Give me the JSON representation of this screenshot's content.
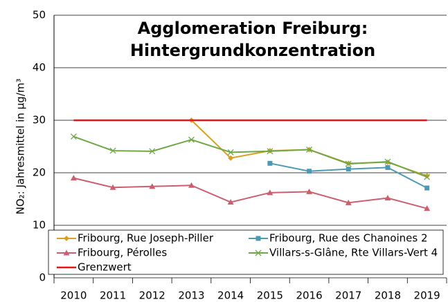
{
  "chart_data": {
    "type": "line",
    "title": [
      "Agglomeration Freiburg:",
      "Hintergrundkonzentration"
    ],
    "y_label": "NO₂: Jahresmittel in µg/m³",
    "categories": [
      "2010",
      "2011",
      "2012",
      "2013",
      "2014",
      "2015",
      "2016",
      "2017",
      "2018",
      "2019"
    ],
    "ylim": [
      0,
      50
    ],
    "yticks": [
      0,
      10,
      20,
      30,
      40,
      50
    ],
    "grid": true,
    "series": [
      {
        "name": "Fribourg, Rue Joseph-Piller",
        "color": "#d9a021",
        "marker": "diamond",
        "values": [
          null,
          null,
          null,
          30,
          22.8,
          24.2,
          24.4,
          21.8,
          22.0,
          19.4
        ]
      },
      {
        "name": "Fribourg, Rue des Chanoines 2",
        "color": "#4b9ab3",
        "marker": "square",
        "values": [
          null,
          null,
          null,
          null,
          null,
          21.8,
          20.3,
          20.7,
          21.0,
          17.1
        ]
      },
      {
        "name": "Fribourg, Pérolles",
        "color": "#cc5f6e",
        "marker": "triangle",
        "values": [
          19.0,
          17.2,
          17.4,
          17.6,
          14.4,
          16.2,
          16.4,
          14.3,
          15.2,
          13.2
        ]
      },
      {
        "name": "Villars-s-Glâne, Rte Villars-Vert 4",
        "color": "#6fa845",
        "marker": "x",
        "values": [
          26.9,
          24.2,
          24.1,
          26.3,
          23.9,
          24.1,
          24.4,
          21.7,
          22.1,
          19.2
        ]
      },
      {
        "name": "Grenzwert",
        "color": "#e8141b",
        "marker": "none",
        "values": [
          30,
          30,
          30,
          30,
          30,
          30,
          30,
          30,
          30,
          30
        ]
      }
    ]
  }
}
